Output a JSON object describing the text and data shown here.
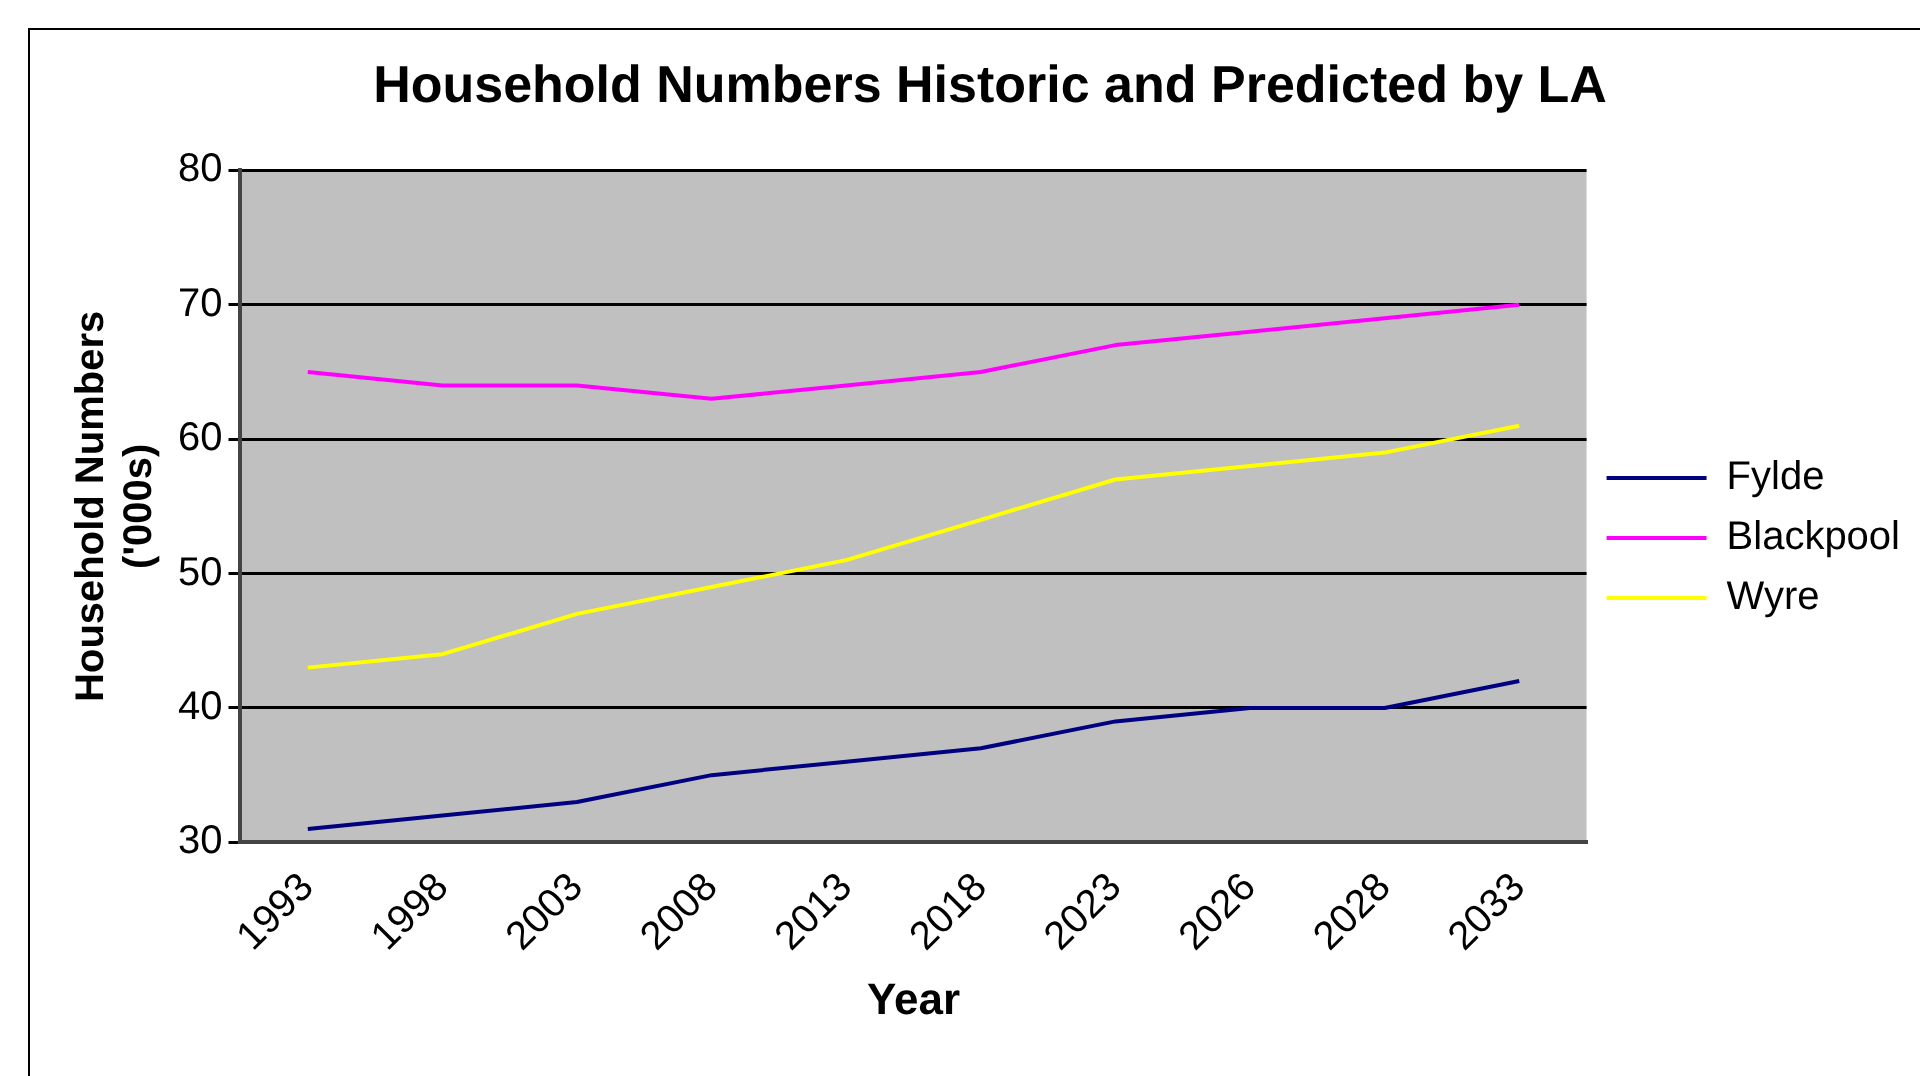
{
  "chart_data": {
    "type": "line",
    "title": "Household Numbers Historic and Predicted by LA",
    "xlabel": "Year",
    "ylabel": "Household Numbers ('000s)",
    "categories": [
      "1993",
      "1998",
      "2003",
      "2008",
      "2013",
      "2018",
      "2023",
      "2026",
      "2028",
      "2033"
    ],
    "series": [
      {
        "name": "Fylde",
        "color": "#000080",
        "values": [
          31,
          32,
          33,
          35,
          36,
          37,
          39,
          40,
          40,
          42
        ]
      },
      {
        "name": "Blackpool",
        "color": "#ff00ff",
        "values": [
          65,
          64,
          64,
          63,
          64,
          65,
          67,
          68,
          69,
          70
        ]
      },
      {
        "name": "Wyre",
        "color": "#ffff00",
        "values": [
          43,
          44,
          47,
          49,
          51,
          54,
          57,
          58,
          59,
          61
        ]
      }
    ],
    "ylim": [
      30,
      80
    ],
    "yticks": [
      30,
      40,
      50,
      60,
      70,
      80
    ],
    "grid": "y",
    "legend": "right",
    "marker": "none",
    "line_style": "solid"
  }
}
